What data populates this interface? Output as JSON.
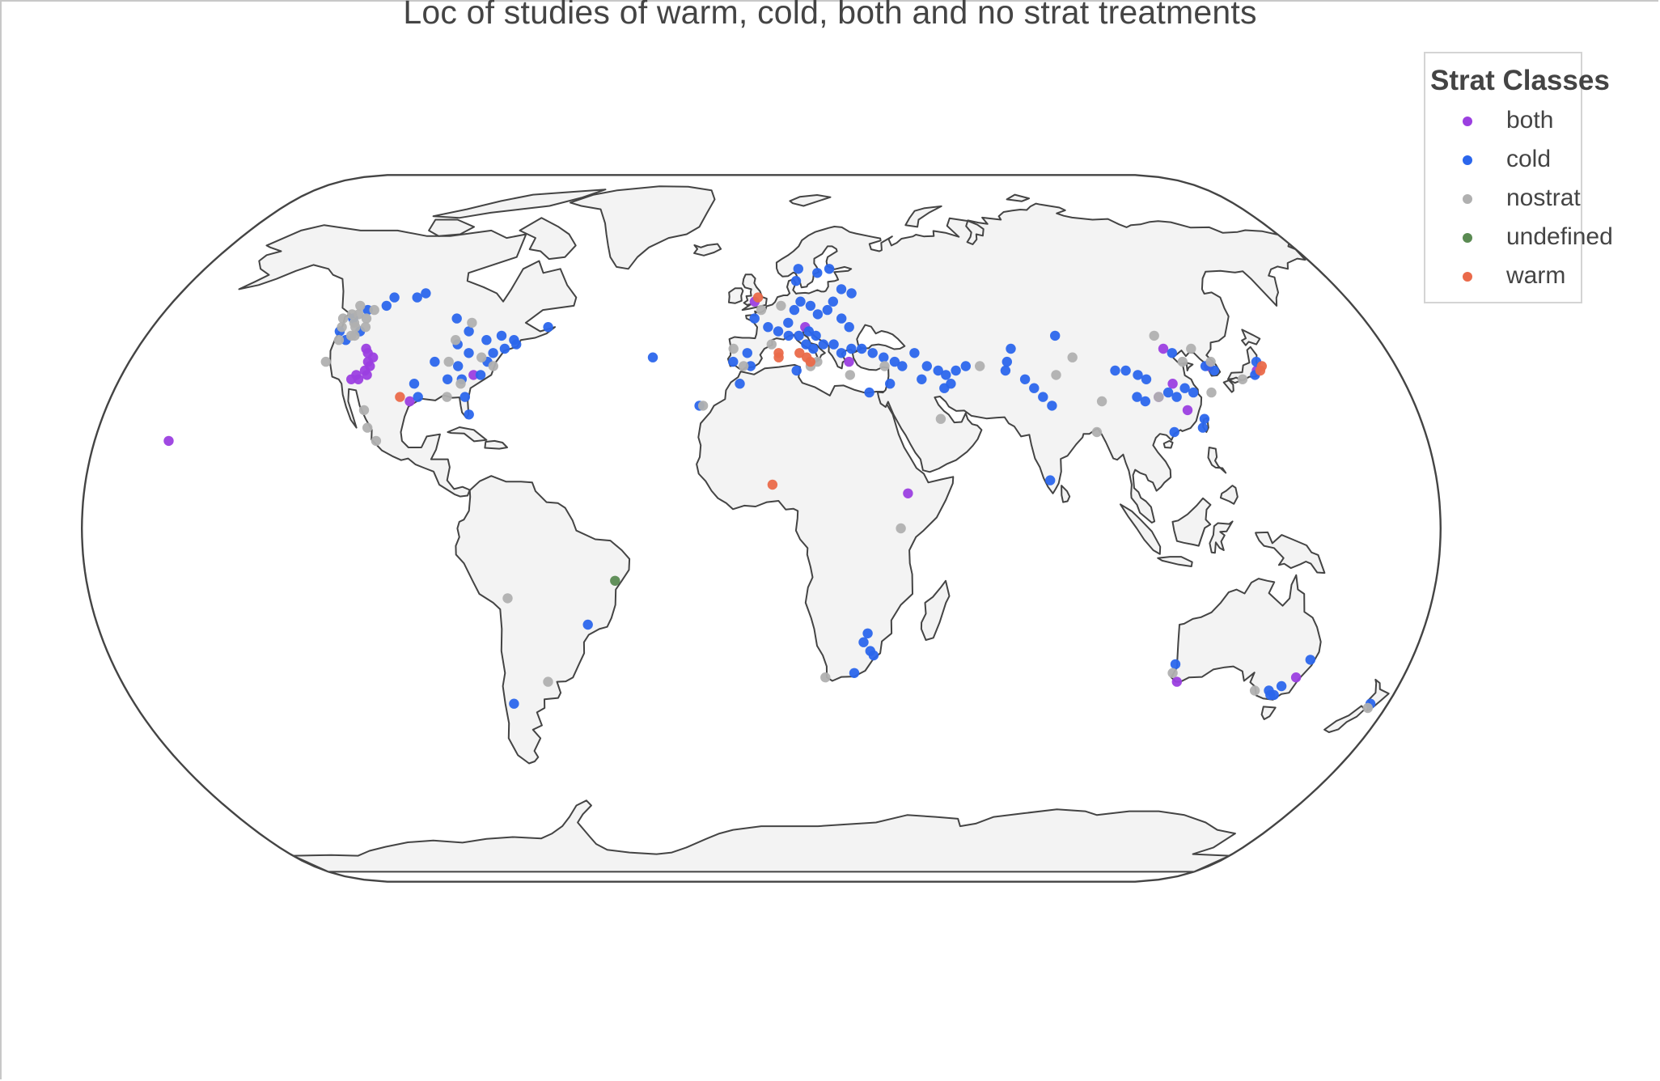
{
  "map": {
    "title": "Loc of studies of warm, cold, both and no strat treatments",
    "projection": "natural earth",
    "land_color": "#f3f3f3",
    "coast_color": "#444444",
    "ocean_color": "#ffffff"
  },
  "legend": {
    "title": "Strat Classes",
    "items": [
      {
        "label": "both",
        "color": "#9b3fe0"
      },
      {
        "label": "cold",
        "color": "#2b66ec"
      },
      {
        "label": "nostrat",
        "color": "#b0b0b0"
      },
      {
        "label": "undefined",
        "color": "#5a8a52"
      },
      {
        "label": "warm",
        "color": "#ea6a4a"
      }
    ]
  },
  "chart_data": {
    "type": "scatter",
    "title": "Loc of studies of warm, cold, both and no strat treatments",
    "legend_title": "Strat Classes",
    "legend_placement": "top-right",
    "x_label": "longitude",
    "y_label": "latitude",
    "series": [
      {
        "name": "both",
        "color": "#9b3fe0",
        "points": [
          [
            -113,
            40
          ],
          [
            -112,
            38
          ],
          [
            -111,
            37
          ],
          [
            -112,
            36
          ],
          [
            -111,
            35
          ],
          [
            -113,
            34
          ],
          [
            -114,
            35
          ],
          [
            -115,
            34
          ],
          [
            -111,
            39
          ],
          [
            -114,
            41
          ],
          [
            -97,
            29
          ],
          [
            -81,
            35
          ],
          [
            -160,
            20
          ],
          [
            -2,
            52
          ],
          [
            13,
            46
          ],
          [
            25,
            38
          ],
          [
            39,
            8
          ],
          [
            110,
            30
          ],
          [
            117,
            27
          ],
          [
            127,
            37
          ],
          [
            140,
            36
          ],
          [
            116,
            41
          ],
          [
            115,
            33
          ],
          [
            150,
            -34
          ],
          [
            117,
            -35
          ]
        ]
      },
      {
        "name": "cold",
        "color": "#2b66ec",
        "points": [
          [
            -122,
            48
          ],
          [
            -119,
            50
          ],
          [
            -114,
            51
          ],
          [
            -113,
            53
          ],
          [
            -106,
            53
          ],
          [
            -124,
            45
          ],
          [
            -121,
            43
          ],
          [
            -118,
            45
          ],
          [
            -91,
            48
          ],
          [
            -86,
            45
          ],
          [
            -80,
            43
          ],
          [
            -76,
            44
          ],
          [
            -72,
            43
          ],
          [
            -88,
            42
          ],
          [
            -84,
            40
          ],
          [
            -86,
            37
          ],
          [
            -78,
            38
          ],
          [
            -77,
            40
          ],
          [
            -74,
            41
          ],
          [
            -71,
            42
          ],
          [
            -93,
            38
          ],
          [
            -88,
            34
          ],
          [
            -84,
            34
          ],
          [
            -82,
            30
          ],
          [
            -80,
            26
          ],
          [
            -95,
            30
          ],
          [
            -63,
            46
          ],
          [
            -97,
            33
          ],
          [
            -79,
            35
          ],
          [
            -104,
            54
          ],
          [
            -2,
            48
          ],
          [
            2,
            46
          ],
          [
            5,
            45
          ],
          [
            8,
            47
          ],
          [
            10,
            50
          ],
          [
            12,
            52
          ],
          [
            15,
            51
          ],
          [
            17,
            49
          ],
          [
            20,
            50
          ],
          [
            22,
            52
          ],
          [
            24,
            48
          ],
          [
            26,
            46
          ],
          [
            14,
            45
          ],
          [
            16,
            44
          ],
          [
            11,
            44
          ],
          [
            8,
            44
          ],
          [
            -4,
            40
          ],
          [
            -3,
            37
          ],
          [
            -8,
            38
          ],
          [
            -6,
            33
          ],
          [
            10,
            36
          ],
          [
            13,
            42
          ],
          [
            15,
            41
          ],
          [
            18,
            42
          ],
          [
            21,
            42
          ],
          [
            23,
            40
          ],
          [
            26,
            41
          ],
          [
            29,
            41
          ],
          [
            32,
            40
          ],
          [
            35,
            39
          ],
          [
            38,
            38
          ],
          [
            40,
            37
          ],
          [
            44,
            40
          ],
          [
            47,
            37
          ],
          [
            50,
            36
          ],
          [
            52,
            35
          ],
          [
            55,
            36
          ],
          [
            58,
            37
          ],
          [
            45,
            34
          ],
          [
            30,
            31
          ],
          [
            36,
            33
          ],
          [
            51,
            32
          ],
          [
            53,
            33
          ],
          [
            70,
            38
          ],
          [
            74,
            34
          ],
          [
            76,
            32
          ],
          [
            78,
            30
          ],
          [
            80,
            28
          ],
          [
            69,
            36
          ],
          [
            72,
            41
          ],
          [
            86,
            44
          ],
          [
            100,
            36
          ],
          [
            103,
            36
          ],
          [
            106,
            35
          ],
          [
            108,
            34
          ],
          [
            113,
            31
          ],
          [
            115,
            30
          ],
          [
            118,
            32
          ],
          [
            120,
            31
          ],
          [
            104,
            30
          ],
          [
            112,
            22
          ],
          [
            121,
            25
          ],
          [
            120,
            23
          ],
          [
            126,
            37
          ],
          [
            128,
            36
          ],
          [
            139,
            35
          ],
          [
            141,
            38
          ],
          [
            118,
            40
          ],
          [
            106,
            29
          ],
          [
            77,
            11
          ],
          [
            12,
            60
          ],
          [
            18,
            59
          ],
          [
            22,
            60
          ],
          [
            25,
            55
          ],
          [
            28,
            54
          ],
          [
            11,
            57
          ],
          [
            29,
            -24
          ],
          [
            28,
            -26
          ],
          [
            30,
            -28
          ],
          [
            31,
            -29
          ],
          [
            26,
            -33
          ],
          [
            -47,
            -22
          ],
          [
            -71,
            -40
          ],
          [
            145,
            -38
          ],
          [
            144,
            -37
          ],
          [
            146,
            -38
          ],
          [
            147,
            -36
          ],
          [
            152,
            -30
          ],
          [
            175,
            -40
          ],
          [
            115,
            -31
          ],
          [
            -31,
            39
          ],
          [
            -17,
            28
          ]
        ]
      },
      {
        "name": "nostrat",
        "color": "#b0b0b0",
        "points": [
          [
            -123,
            49
          ],
          [
            -121,
            47
          ],
          [
            -120,
            44
          ],
          [
            -124,
            46
          ],
          [
            -117,
            46
          ],
          [
            -122,
            51
          ],
          [
            -118,
            48
          ],
          [
            -119,
            44
          ],
          [
            -123,
            43
          ],
          [
            -121,
            49
          ],
          [
            -125,
            48
          ],
          [
            -120,
            46
          ],
          [
            -117,
            50
          ],
          [
            -89,
            43
          ],
          [
            -89,
            38
          ],
          [
            -80,
            39
          ],
          [
            -76,
            37
          ],
          [
            -87,
            30
          ],
          [
            -84,
            33
          ],
          [
            -109,
            27
          ],
          [
            -107,
            23
          ],
          [
            -104,
            20
          ],
          [
            -124,
            38
          ],
          [
            -86,
            47
          ],
          [
            -16,
            28
          ],
          [
            -8,
            41
          ],
          [
            -5,
            37
          ],
          [
            0,
            50
          ],
          [
            3,
            42
          ],
          [
            6,
            51
          ],
          [
            14,
            37
          ],
          [
            16,
            38
          ],
          [
            25,
            35
          ],
          [
            35,
            37
          ],
          [
            49,
            25
          ],
          [
            62,
            37
          ],
          [
            83,
            35
          ],
          [
            94,
            29
          ],
          [
            91,
            22
          ],
          [
            128,
            38
          ],
          [
            110,
            30
          ],
          [
            135,
            34
          ],
          [
            125,
            31
          ],
          [
            37,
            0
          ],
          [
            18,
            -34
          ],
          [
            -68,
            -16
          ],
          [
            -60,
            -35
          ],
          [
            115,
            -33
          ],
          [
            175,
            -41
          ],
          [
            140,
            -37
          ],
          [
            120,
            38
          ],
          [
            124,
            41
          ],
          [
            115,
            44
          ],
          [
            89,
            39
          ]
        ]
      },
      {
        "name": "undefined",
        "color": "#5a8a52",
        "points": [
          [
            -39,
            -12
          ]
        ]
      },
      {
        "name": "warm",
        "color": "#ea6a4a",
        "points": [
          [
            -100,
            30
          ],
          [
            -1,
            53
          ],
          [
            13,
            39
          ],
          [
            14,
            38
          ],
          [
            5,
            40
          ],
          [
            5,
            39
          ],
          [
            11,
            40
          ],
          [
            141,
            36
          ],
          [
            142,
            37
          ],
          [
            3,
            10
          ]
        ]
      }
    ]
  }
}
